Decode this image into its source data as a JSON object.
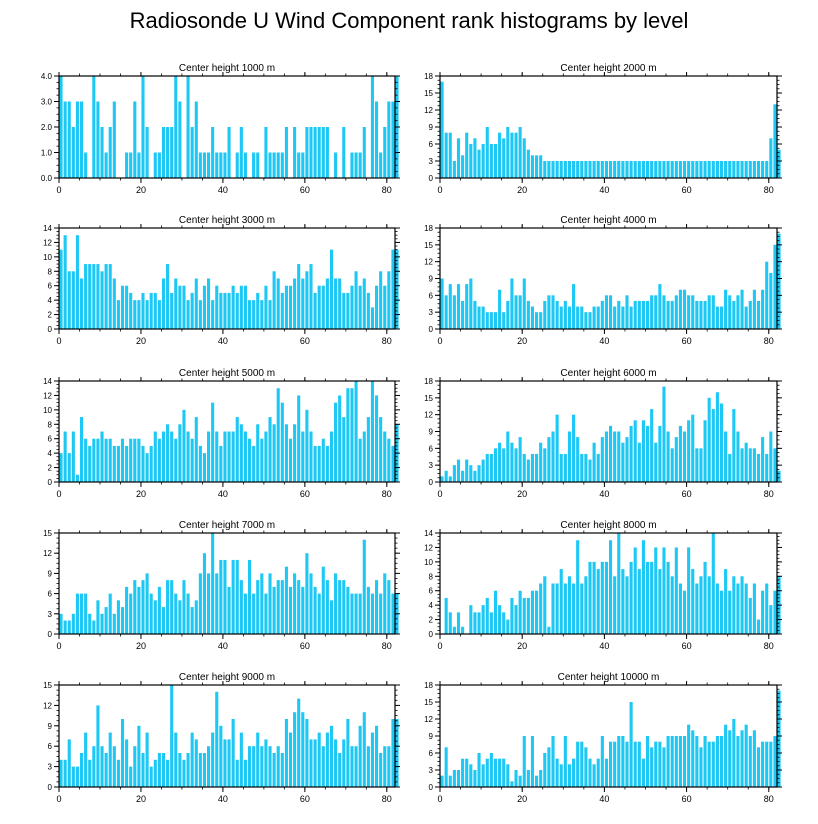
{
  "title": "Radiosonde U Wind Component rank histograms by level",
  "colors": {
    "bar": "#1ec8f5",
    "bar_edge": "#ffffff",
    "axis": "#000000"
  },
  "chart_data": [
    {
      "type": "bar",
      "title": "Center height 1000 m",
      "xlabel": "",
      "ylabel": "",
      "xlim": [
        0,
        82
      ],
      "ylim": [
        0,
        4
      ],
      "yticks": [
        0,
        1,
        2,
        3,
        4
      ],
      "ytick_labels": [
        "0.0",
        "1.0",
        "2.0",
        "3.0",
        "4.0"
      ],
      "xticks": [
        0,
        20,
        40,
        60,
        80
      ],
      "xtick_labels": [
        "0",
        "20",
        "40",
        "60",
        "80"
      ],
      "values": [
        4,
        3,
        3,
        2,
        3,
        3,
        1,
        0,
        4,
        3,
        2,
        1,
        2,
        3,
        0,
        0,
        1,
        1,
        3,
        1,
        4,
        2,
        0,
        1,
        1,
        2,
        2,
        2,
        4,
        3,
        0,
        4,
        2,
        3,
        1,
        1,
        1,
        2,
        1,
        1,
        1,
        2,
        0,
        1,
        2,
        1,
        0,
        1,
        1,
        0,
        2,
        1,
        1,
        1,
        1,
        2,
        0,
        2,
        1,
        1,
        2,
        2,
        2,
        2,
        2,
        2,
        0,
        1,
        0,
        2,
        0,
        1,
        1,
        1,
        2,
        0,
        4,
        3,
        1,
        2,
        3,
        3,
        4
      ]
    },
    {
      "type": "bar",
      "title": "Center height 2000 m",
      "xlabel": "",
      "ylabel": "",
      "xlim": [
        0,
        82
      ],
      "ylim": [
        0,
        18
      ],
      "yticks": [
        0,
        3,
        6,
        9,
        12,
        15,
        18
      ],
      "ytick_labels": [
        "0",
        "3",
        "6",
        "9",
        "12",
        "15",
        "18"
      ],
      "xticks": [
        0,
        20,
        40,
        60,
        80
      ],
      "xtick_labels": [
        "0",
        "20",
        "40",
        "60",
        "80"
      ],
      "values": [
        17,
        8,
        8,
        3,
        7,
        4,
        8,
        6,
        7,
        5,
        6,
        9,
        6,
        6,
        8,
        7,
        9,
        8,
        8,
        9,
        7,
        5,
        4,
        4,
        4,
        3,
        3,
        3,
        3,
        3,
        3,
        3,
        3,
        3,
        3,
        3,
        3,
        3,
        3,
        3,
        3,
        3,
        3,
        3,
        3,
        3,
        3,
        3,
        3,
        3,
        3,
        3,
        3,
        3,
        3,
        3,
        3,
        3,
        3,
        3,
        3,
        3,
        3,
        3,
        3,
        3,
        3,
        3,
        3,
        3,
        3,
        3,
        3,
        3,
        3,
        3,
        3,
        3,
        3,
        3,
        7,
        13,
        5
      ]
    },
    {
      "type": "bar",
      "title": "Center height 3000 m",
      "xlabel": "",
      "ylabel": "",
      "xlim": [
        0,
        82
      ],
      "ylim": [
        0,
        14
      ],
      "yticks": [
        0,
        2,
        4,
        6,
        8,
        10,
        12,
        14
      ],
      "ytick_labels": [
        "0",
        "2",
        "4",
        "6",
        "8",
        "10",
        "12",
        "14"
      ],
      "xticks": [
        0,
        20,
        40,
        60,
        80
      ],
      "xtick_labels": [
        "0",
        "20",
        "40",
        "60",
        "80"
      ],
      "values": [
        11,
        13,
        8,
        8,
        13,
        7,
        9,
        9,
        9,
        9,
        8,
        9,
        9,
        7,
        4,
        6,
        6,
        5,
        4,
        4,
        5,
        4,
        5,
        5,
        4,
        7,
        9,
        5,
        7,
        6,
        6,
        4,
        5,
        7,
        4,
        6,
        7,
        4,
        6,
        5,
        5,
        5,
        6,
        5,
        6,
        6,
        4,
        4,
        5,
        4,
        6,
        4,
        8,
        7,
        5,
        6,
        6,
        7,
        9,
        7,
        8,
        9,
        5,
        6,
        6,
        7,
        11,
        7,
        7,
        5,
        5,
        6,
        8,
        6,
        7,
        5,
        3,
        6,
        8,
        6,
        8,
        11,
        11
      ]
    },
    {
      "type": "bar",
      "title": "Center height 4000 m",
      "xlabel": "",
      "ylabel": "",
      "xlim": [
        0,
        82
      ],
      "ylim": [
        0,
        18
      ],
      "yticks": [
        0,
        3,
        6,
        9,
        12,
        15,
        18
      ],
      "ytick_labels": [
        "0",
        "3",
        "6",
        "9",
        "12",
        "15",
        "18"
      ],
      "xticks": [
        0,
        20,
        40,
        60,
        80
      ],
      "xtick_labels": [
        "0",
        "20",
        "40",
        "60",
        "80"
      ],
      "values": [
        9,
        6,
        8,
        6,
        8,
        5,
        8,
        9,
        5,
        4,
        4,
        3,
        3,
        3,
        7,
        3,
        5,
        9,
        6,
        6,
        9,
        5,
        4,
        3,
        3,
        5,
        6,
        6,
        5,
        4,
        5,
        4,
        8,
        4,
        4,
        3,
        3,
        4,
        4,
        5,
        6,
        6,
        4,
        5,
        4,
        6,
        4,
        5,
        5,
        5,
        5,
        6,
        6,
        8,
        6,
        5,
        5,
        6,
        7,
        7,
        6,
        6,
        5,
        5,
        5,
        6,
        6,
        4,
        4,
        7,
        6,
        5,
        6,
        7,
        4,
        5,
        7,
        5,
        7,
        12,
        10,
        15,
        17
      ]
    },
    {
      "type": "bar",
      "title": "Center height 5000 m",
      "xlabel": "",
      "ylabel": "",
      "xlim": [
        0,
        82
      ],
      "ylim": [
        0,
        14
      ],
      "yticks": [
        0,
        2,
        4,
        6,
        8,
        10,
        12,
        14
      ],
      "ytick_labels": [
        "0",
        "2",
        "4",
        "6",
        "8",
        "10",
        "12",
        "14"
      ],
      "xticks": [
        0,
        20,
        40,
        60,
        80
      ],
      "xtick_labels": [
        "0",
        "20",
        "40",
        "60",
        "80"
      ],
      "values": [
        4,
        7,
        4,
        7,
        1,
        9,
        6,
        5,
        6,
        6,
        7,
        6,
        6,
        5,
        5,
        6,
        5,
        6,
        6,
        6,
        5,
        4,
        5,
        7,
        6,
        7,
        8,
        7,
        6,
        8,
        10,
        7,
        6,
        9,
        5,
        4,
        7,
        11,
        7,
        5,
        7,
        7,
        7,
        9,
        8,
        7,
        6,
        5,
        8,
        6,
        7,
        9,
        8,
        13,
        11,
        8,
        6,
        8,
        12,
        7,
        10,
        7,
        5,
        5,
        6,
        5,
        7,
        11,
        12,
        9,
        13,
        13,
        14,
        6,
        7,
        9,
        14,
        12,
        9,
        7,
        6,
        5,
        8
      ]
    },
    {
      "type": "bar",
      "title": "Center height 6000 m",
      "xlabel": "",
      "ylabel": "",
      "xlim": [
        0,
        82
      ],
      "ylim": [
        0,
        18
      ],
      "yticks": [
        0,
        3,
        6,
        9,
        12,
        15,
        18
      ],
      "ytick_labels": [
        "0",
        "3",
        "6",
        "9",
        "12",
        "15",
        "18"
      ],
      "xticks": [
        0,
        20,
        40,
        60,
        80
      ],
      "xtick_labels": [
        "0",
        "20",
        "40",
        "60",
        "80"
      ],
      "values": [
        1,
        2,
        1,
        3,
        4,
        2,
        4,
        3,
        2,
        3,
        4,
        5,
        5,
        6,
        7,
        6,
        9,
        7,
        6,
        8,
        5,
        4,
        5,
        5,
        7,
        6,
        8,
        9,
        12,
        5,
        5,
        9,
        12,
        8,
        5,
        5,
        4,
        7,
        5,
        8,
        9,
        10,
        9,
        9,
        7,
        8,
        10,
        11,
        7,
        11,
        10,
        13,
        7,
        10,
        17,
        9,
        6,
        8,
        10,
        9,
        11,
        12,
        6,
        6,
        11,
        15,
        13,
        16,
        14,
        9,
        5,
        13,
        9,
        6,
        7,
        6,
        6,
        5,
        8,
        5,
        9,
        6,
        2
      ]
    },
    {
      "type": "bar",
      "title": "Center height 7000 m",
      "xlabel": "",
      "ylabel": "",
      "xlim": [
        0,
        82
      ],
      "ylim": [
        0,
        15
      ],
      "yticks": [
        0,
        3,
        6,
        9,
        12,
        15
      ],
      "ytick_labels": [
        "0",
        "3",
        "6",
        "9",
        "12",
        "15"
      ],
      "xticks": [
        0,
        20,
        40,
        60,
        80
      ],
      "xtick_labels": [
        "0",
        "20",
        "40",
        "60",
        "80"
      ],
      "values": [
        3,
        2,
        2,
        3,
        6,
        6,
        6,
        3,
        2,
        5,
        3,
        4,
        6,
        3,
        5,
        4,
        7,
        6,
        8,
        7,
        8,
        9,
        6,
        5,
        7,
        4,
        8,
        8,
        6,
        5,
        8,
        6,
        4,
        5,
        9,
        12,
        9,
        15,
        9,
        11,
        11,
        7,
        11,
        11,
        8,
        6,
        11,
        6,
        8,
        9,
        6,
        9,
        7,
        8,
        8,
        10,
        7,
        9,
        8,
        7,
        12,
        9,
        7,
        6,
        10,
        8,
        5,
        9,
        8,
        8,
        7,
        6,
        6,
        6,
        14,
        7,
        6,
        8,
        6,
        9,
        8,
        6,
        6
      ]
    },
    {
      "type": "bar",
      "title": "Center height 8000 m",
      "xlabel": "",
      "ylabel": "",
      "xlim": [
        0,
        82
      ],
      "ylim": [
        0,
        14
      ],
      "yticks": [
        0,
        2,
        4,
        6,
        8,
        10,
        12,
        14
      ],
      "ytick_labels": [
        "0",
        "2",
        "4",
        "6",
        "8",
        "10",
        "12",
        "14"
      ],
      "xticks": [
        0,
        20,
        40,
        60,
        80
      ],
      "xtick_labels": [
        "0",
        "20",
        "40",
        "60",
        "80"
      ],
      "values": [
        0,
        5,
        3,
        1,
        3,
        1,
        0,
        4,
        3,
        3,
        4,
        5,
        3,
        6,
        4,
        3,
        2,
        5,
        4,
        6,
        5,
        5,
        6,
        6,
        7,
        8,
        1,
        7,
        7,
        9,
        7,
        8,
        7,
        13,
        7,
        8,
        10,
        10,
        9,
        10,
        10,
        13,
        8,
        14,
        9,
        8,
        10,
        12,
        9,
        13,
        10,
        10,
        12,
        9,
        12,
        10,
        8,
        12,
        7,
        6,
        12,
        9,
        7,
        8,
        10,
        8,
        14,
        7,
        6,
        9,
        6,
        8,
        7,
        8,
        7,
        5,
        7,
        2,
        6,
        7,
        4,
        6,
        8
      ]
    },
    {
      "type": "bar",
      "title": "Center height 9000 m",
      "xlabel": "",
      "ylabel": "",
      "xlim": [
        0,
        82
      ],
      "ylim": [
        0,
        15
      ],
      "yticks": [
        0,
        3,
        6,
        9,
        12,
        15
      ],
      "ytick_labels": [
        "0",
        "3",
        "6",
        "9",
        "12",
        "15"
      ],
      "xticks": [
        0,
        20,
        40,
        60,
        80
      ],
      "xtick_labels": [
        "0",
        "20",
        "40",
        "60",
        "80"
      ],
      "values": [
        4,
        4,
        7,
        3,
        3,
        5,
        8,
        4,
        6,
        12,
        6,
        5,
        8,
        6,
        4,
        10,
        7,
        3,
        6,
        9,
        5,
        8,
        3,
        4,
        5,
        5,
        4,
        15,
        8,
        5,
        4,
        5,
        8,
        7,
        5,
        5,
        6,
        8,
        14,
        9,
        7,
        7,
        10,
        4,
        8,
        4,
        6,
        6,
        8,
        6,
        7,
        6,
        5,
        6,
        5,
        10,
        8,
        11,
        13,
        11,
        10,
        7,
        7,
        8,
        6,
        8,
        9,
        7,
        5,
        7,
        10,
        6,
        6,
        9,
        11,
        6,
        8,
        9,
        5,
        6,
        6,
        10,
        10
      ]
    },
    {
      "type": "bar",
      "title": "Center height 10000 m",
      "xlabel": "",
      "ylabel": "",
      "xlim": [
        0,
        82
      ],
      "ylim": [
        0,
        18
      ],
      "yticks": [
        0,
        3,
        6,
        9,
        12,
        15,
        18
      ],
      "ytick_labels": [
        "0",
        "3",
        "6",
        "9",
        "12",
        "15",
        "18"
      ],
      "xticks": [
        0,
        20,
        40,
        60,
        80
      ],
      "xtick_labels": [
        "0",
        "20",
        "40",
        "60",
        "80"
      ],
      "values": [
        2,
        7,
        2,
        3,
        3,
        5,
        5,
        4,
        3,
        6,
        4,
        5,
        6,
        5,
        5,
        5,
        4,
        1,
        3,
        2,
        9,
        3,
        9,
        2,
        3,
        6,
        7,
        9,
        5,
        4,
        9,
        4,
        5,
        8,
        8,
        7,
        5,
        4,
        5,
        9,
        5,
        8,
        8,
        9,
        9,
        8,
        15,
        8,
        8,
        5,
        9,
        7,
        8,
        8,
        7,
        9,
        9,
        9,
        9,
        9,
        11,
        10,
        9,
        7,
        9,
        8,
        8,
        9,
        9,
        11,
        10,
        12,
        9,
        10,
        11,
        9,
        10,
        7,
        8,
        8,
        8,
        9,
        17
      ]
    }
  ]
}
